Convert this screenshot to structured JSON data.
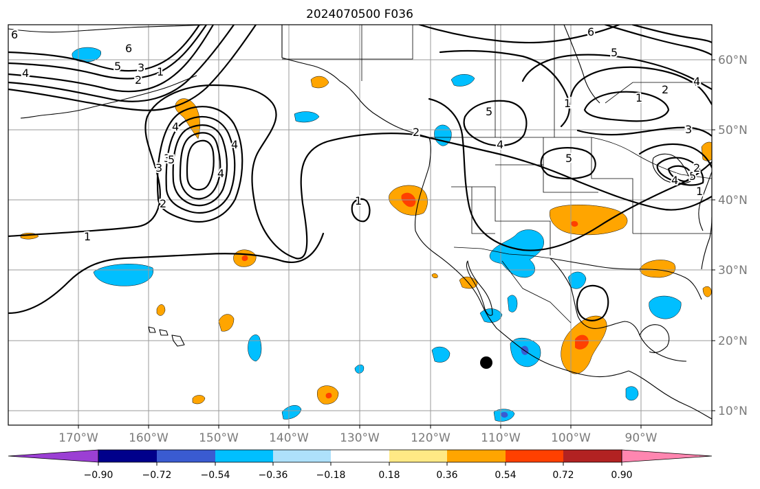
{
  "title": "2024070500 F036",
  "lat_labels": [
    "60°N",
    "50°N",
    "40°N",
    "30°N",
    "20°N",
    "10°N"
  ],
  "lon_labels": [
    "170°W",
    "160°W",
    "150°W",
    "140°W",
    "130°W",
    "120°W",
    "110°W",
    "100°W",
    "90°W"
  ],
  "colorbar": {
    "ticks": [
      "−0.90",
      "−0.72",
      "−0.54",
      "−0.36",
      "−0.18",
      "0.18",
      "0.36",
      "0.54",
      "0.72",
      "0.90"
    ],
    "colors": [
      "#9b3fd4",
      "#00008b",
      "#3a5bd1",
      "#00bfff",
      "#aee1fb",
      "#ffffff",
      "#ffe985",
      "#ffa500",
      "#ff4000",
      "#b22222",
      "#ff86b0"
    ]
  },
  "fill_colors": {
    "light_blue": "#aee1fb",
    "blue": "#00bfff",
    "mid_blue": "#3a5bd1",
    "yellow": "#ffe985",
    "orange": "#ffa500",
    "red_orange": "#ff4000"
  },
  "contour_labels": [
    "6",
    "5",
    "4",
    "3",
    "2",
    "1",
    "4",
    "3",
    "2",
    "1",
    "5",
    "4",
    "2",
    "1",
    "6",
    "5",
    "4",
    "3",
    "2",
    "1",
    "5",
    "5",
    "4",
    "4",
    "3",
    "2",
    "1",
    "1",
    "6",
    "5",
    "4"
  ]
}
